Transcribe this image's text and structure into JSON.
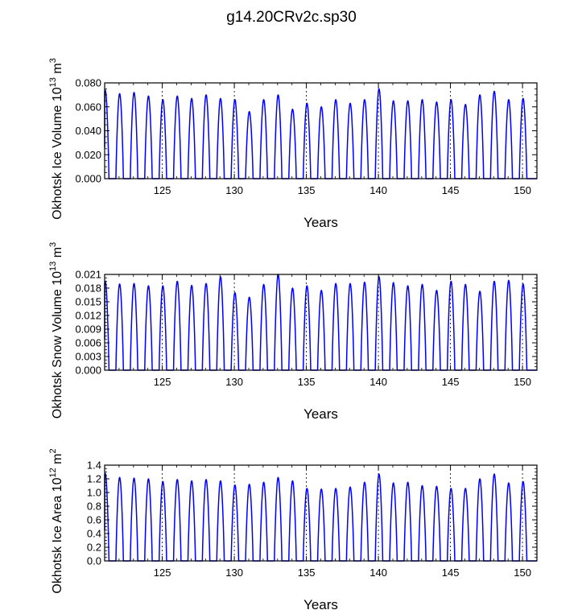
{
  "title": "g14.20CRv2c.sp30",
  "chart_data": [
    {
      "type": "line",
      "ylabel_base": "Okhotsk Ice Volume 10",
      "ylabel_exp": "13",
      "ylabel_unit": " m",
      "ylabel_unit_exp": "3",
      "xlabel": "Years",
      "xlim": [
        121,
        151
      ],
      "ylim": [
        0,
        0.08
      ],
      "xticks": [
        125,
        130,
        135,
        140,
        145,
        150
      ],
      "xtick_labels": [
        "125",
        "130",
        "135",
        "140",
        "145",
        "150"
      ],
      "yticks": [
        0,
        0.02,
        0.04,
        0.06,
        0.08
      ],
      "ytick_labels": [
        "0.000",
        "0.020",
        "0.040",
        "0.060",
        "0.080"
      ],
      "grid": "dashed vertical at 125,130,135,140,145,150",
      "series": [
        {
          "name": "Okhotsk Ice Volume",
          "color": "#0000ff",
          "years": [
            121,
            122,
            123,
            124,
            125,
            126,
            127,
            128,
            129,
            130,
            131,
            132,
            133,
            134,
            135,
            136,
            137,
            138,
            139,
            140,
            141,
            142,
            143,
            144,
            145,
            146,
            147,
            148,
            149,
            150
          ],
          "annual_max": [
            0.074,
            0.071,
            0.072,
            0.069,
            0.066,
            0.069,
            0.067,
            0.07,
            0.067,
            0.066,
            0.056,
            0.066,
            0.07,
            0.058,
            0.063,
            0.06,
            0.066,
            0.063,
            0.066,
            0.075,
            0.065,
            0.065,
            0.066,
            0.064,
            0.066,
            0.062,
            0.07,
            0.073,
            0.066,
            0.067
          ]
        }
      ]
    },
    {
      "type": "line",
      "ylabel_base": "Okhotsk Snow Volume 10",
      "ylabel_exp": "13",
      "ylabel_unit": " m",
      "ylabel_unit_exp": "3",
      "xlabel": "Years",
      "xlim": [
        121,
        151
      ],
      "ylim": [
        0,
        0.021
      ],
      "xticks": [
        125,
        130,
        135,
        140,
        145,
        150
      ],
      "xtick_labels": [
        "125",
        "130",
        "135",
        "140",
        "145",
        "150"
      ],
      "yticks": [
        0,
        0.003,
        0.006,
        0.009,
        0.012,
        0.015,
        0.018,
        0.021
      ],
      "ytick_labels": [
        "0.000",
        "0.003",
        "0.006",
        "0.009",
        "0.012",
        "0.015",
        "0.018",
        "0.021"
      ],
      "grid": "dashed vertical at 125,130,135,140,145,150",
      "series": [
        {
          "name": "Okhotsk Snow Volume",
          "color": "#0000ff",
          "years": [
            121,
            122,
            123,
            124,
            125,
            126,
            127,
            128,
            129,
            130,
            131,
            132,
            133,
            134,
            135,
            136,
            137,
            138,
            139,
            140,
            141,
            142,
            143,
            144,
            145,
            146,
            147,
            148,
            149,
            150
          ],
          "annual_max": [
            0.0195,
            0.0189,
            0.019,
            0.0185,
            0.0185,
            0.0195,
            0.0186,
            0.019,
            0.0205,
            0.017,
            0.016,
            0.0188,
            0.021,
            0.018,
            0.0185,
            0.0175,
            0.019,
            0.019,
            0.0193,
            0.0205,
            0.0192,
            0.0185,
            0.0188,
            0.0175,
            0.0195,
            0.0188,
            0.0173,
            0.0195,
            0.0197,
            0.0189
          ]
        }
      ]
    },
    {
      "type": "line",
      "ylabel_base": "Okhotsk Ice Area 10",
      "ylabel_exp": "12",
      "ylabel_unit": " m",
      "ylabel_unit_exp": "2",
      "xlabel": "Years",
      "xlim": [
        121,
        151
      ],
      "ylim": [
        0,
        1.4
      ],
      "xticks": [
        125,
        130,
        135,
        140,
        145,
        150
      ],
      "xtick_labels": [
        "125",
        "130",
        "135",
        "140",
        "145",
        "150"
      ],
      "yticks": [
        0,
        0.2,
        0.4,
        0.6,
        0.8,
        1.0,
        1.2,
        1.4
      ],
      "ytick_labels": [
        "0.0",
        "0.2",
        "0.4",
        "0.6",
        "0.8",
        "1.0",
        "1.2",
        "1.4"
      ],
      "grid": "dashed vertical at 125,130,135,140,145,150",
      "series": [
        {
          "name": "Okhotsk Ice Area",
          "color": "#0000ff",
          "years": [
            121,
            122,
            123,
            124,
            125,
            126,
            127,
            128,
            129,
            130,
            131,
            132,
            133,
            134,
            135,
            136,
            137,
            138,
            139,
            140,
            141,
            142,
            143,
            144,
            145,
            146,
            147,
            148,
            149,
            150
          ],
          "annual_max": [
            1.28,
            1.22,
            1.21,
            1.2,
            1.16,
            1.19,
            1.17,
            1.19,
            1.17,
            1.11,
            1.12,
            1.15,
            1.22,
            1.17,
            1.06,
            1.05,
            1.06,
            1.08,
            1.15,
            1.27,
            1.14,
            1.15,
            1.1,
            1.09,
            1.06,
            1.06,
            1.2,
            1.27,
            1.14,
            1.16
          ]
        }
      ]
    }
  ]
}
